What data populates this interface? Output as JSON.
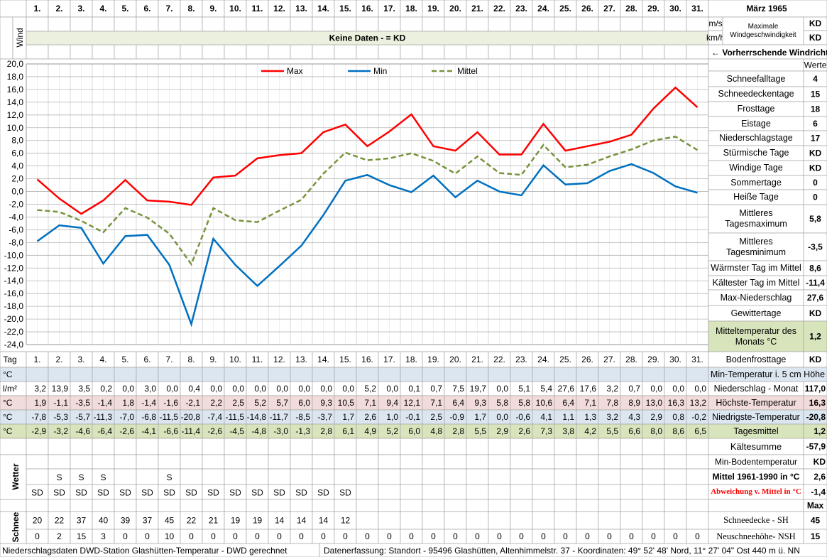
{
  "header": {
    "title": "März 1965"
  },
  "wind": {
    "label": "Wind",
    "units": [
      "m/s",
      "km/h"
    ],
    "banner": "Keine Daten -  = KD",
    "max_label": "Maximale Windgeschwindigkeit",
    "max_values": [
      "KD",
      "KD"
    ],
    "direction": "← Vorherrschende Windrichtung"
  },
  "chart_data": {
    "type": "line",
    "categories": [
      "1.",
      "2.",
      "3.",
      "4.",
      "5.",
      "6.",
      "7.",
      "8.",
      "9.",
      "10.",
      "11.",
      "12.",
      "13.",
      "14.",
      "15.",
      "16.",
      "17.",
      "18.",
      "19.",
      "20.",
      "21.",
      "22.",
      "23.",
      "24.",
      "25.",
      "26.",
      "27.",
      "28.",
      "29.",
      "30.",
      "31."
    ],
    "ylim": [
      -24,
      20
    ],
    "yticks": [
      {
        "value": 20,
        "label": "20,0"
      },
      {
        "value": 18,
        "label": "18,0"
      },
      {
        "value": 16,
        "label": "16,0"
      },
      {
        "value": 14,
        "label": "14,0"
      },
      {
        "value": 12,
        "label": "12,0"
      },
      {
        "value": 10,
        "label": "10,0"
      },
      {
        "value": 8,
        "label": "8,0"
      },
      {
        "value": 6,
        "label": "6,0"
      },
      {
        "value": 4,
        "label": "4,0"
      },
      {
        "value": 2,
        "label": "2,0"
      },
      {
        "value": 0,
        "label": "0,0"
      },
      {
        "value": -2,
        "label": "-2,0"
      },
      {
        "value": -4,
        "label": "-4,0"
      },
      {
        "value": -6,
        "label": "-6,0"
      },
      {
        "value": -8,
        "label": "-8,0"
      },
      {
        "value": -10,
        "label": "-10,0"
      },
      {
        "value": -12,
        "label": "-12,0"
      },
      {
        "value": -14,
        "label": "-14,0"
      },
      {
        "value": -16,
        "label": "-16,0"
      },
      {
        "value": -18,
        "label": "-18,0"
      },
      {
        "value": -20,
        "label": "-20,0"
      },
      {
        "value": -22,
        "label": "-22,0"
      },
      {
        "value": -24,
        "label": "-24,0"
      }
    ],
    "grid": true,
    "legend": "top",
    "series": [
      {
        "name": "Max",
        "color": "#ff0000",
        "line_style": "solid",
        "values": [
          1.9,
          -1.1,
          -3.5,
          -1.4,
          1.8,
          -1.4,
          -1.6,
          -2.1,
          2.2,
          2.5,
          5.2,
          5.7,
          6.0,
          9.3,
          10.5,
          7.1,
          9.4,
          12.1,
          7.1,
          6.4,
          9.3,
          5.8,
          5.8,
          10.6,
          6.4,
          7.1,
          7.8,
          8.9,
          13.0,
          16.3,
          13.2
        ],
        "value_labels": [
          "1,9",
          "-1,1",
          "-3,5",
          "-1,4",
          "1,8",
          "-1,4",
          "-1,6",
          "-2,1",
          "2,2",
          "2,5",
          "5,2",
          "5,7",
          "6,0",
          "9,3",
          "10,5",
          "7,1",
          "9,4",
          "12,1",
          "7,1",
          "6,4",
          "9,3",
          "5,8",
          "5,8",
          "10,6",
          "6,4",
          "7,1",
          "7,8",
          "8,9",
          "13,0",
          "16,3",
          "13,2"
        ]
      },
      {
        "name": "Min",
        "color": "#0070c0",
        "line_style": "solid",
        "values": [
          -7.8,
          -5.3,
          -5.7,
          -11.3,
          -7.0,
          -6.8,
          -11.5,
          -20.8,
          -7.4,
          -11.5,
          -14.8,
          -11.7,
          -8.5,
          -3.7,
          1.7,
          2.6,
          1.0,
          -0.1,
          2.5,
          -0.9,
          1.7,
          0.0,
          -0.6,
          4.1,
          1.1,
          1.3,
          3.2,
          4.3,
          2.9,
          0.8,
          -0.2
        ],
        "value_labels": [
          "-7,8",
          "-5,3",
          "-5,7",
          "-11,3",
          "-7,0",
          "-6,8",
          "-11,5",
          "-20,8",
          "-7,4",
          "-11,5",
          "-14,8",
          "-11,7",
          "-8,5",
          "-3,7",
          "1,7",
          "2,6",
          "1,0",
          "-0,1",
          "2,5",
          "-0,9",
          "1,7",
          "0,0",
          "-0,6",
          "4,1",
          "1,1",
          "1,3",
          "3,2",
          "4,3",
          "2,9",
          "0,8",
          "-0,2"
        ]
      },
      {
        "name": "Mittel",
        "color": "#77933c",
        "line_style": "dashed",
        "values": [
          -2.9,
          -3.2,
          -4.6,
          -6.4,
          -2.6,
          -4.1,
          -6.6,
          -11.4,
          -2.6,
          -4.5,
          -4.8,
          -3.0,
          -1.3,
          2.8,
          6.1,
          4.9,
          5.2,
          6.0,
          4.8,
          2.8,
          5.5,
          2.9,
          2.6,
          7.3,
          3.8,
          4.2,
          5.5,
          6.6,
          8.0,
          8.6,
          6.5
        ],
        "value_labels": [
          "-2,9",
          "-3,2",
          "-4,6",
          "-6,4",
          "-2,6",
          "-4,1",
          "-6,6",
          "-11,4",
          "-2,6",
          "-4,5",
          "-4,8",
          "-3,0",
          "-1,3",
          "2,8",
          "6,1",
          "4,9",
          "5,2",
          "6,0",
          "4,8",
          "2,8",
          "5,5",
          "2,9",
          "2,6",
          "7,3",
          "3,8",
          "4,2",
          "5,5",
          "6,6",
          "8,0",
          "8,6",
          "6,5"
        ]
      }
    ]
  },
  "stats": {
    "header": "Werte",
    "rows": [
      [
        "Schneefalltage",
        "4"
      ],
      [
        "Schneedeckentage",
        "15"
      ],
      [
        "Frosttage",
        "18"
      ],
      [
        "Eistage",
        "6"
      ],
      [
        "Niederschlagstage",
        "17"
      ],
      [
        "Stürmische Tage",
        "KD"
      ],
      [
        "Windige Tage",
        "KD"
      ],
      [
        "Sommertage",
        "0"
      ],
      [
        "Heiße Tage",
        "0"
      ],
      [
        "Mittleres Tagesmaximum",
        "5,8"
      ],
      [
        "Mittleres Tagesminimum",
        "-3,5"
      ],
      [
        "Wärmster Tag im Mittel",
        "8,6"
      ],
      [
        "Kältester Tag im Mittel",
        "-11,4"
      ],
      [
        "Max-Niederschlag",
        "27,6"
      ],
      [
        "Gewittertage",
        "KD"
      ],
      [
        "Mitteltemperatur des Monats °C",
        "1,2"
      ],
      [
        "Bodenfrosttage",
        "KD"
      ]
    ]
  },
  "table": {
    "day_label": "Tag",
    "soil": {
      "unit": "°C",
      "label": "Min-Temperatur i. 5 cm Höhe"
    },
    "precip": {
      "unit": "l/m²",
      "label": "Niederschlag - Monat",
      "total": "117,0",
      "values": [
        "3,2",
        "13,9",
        "3,5",
        "0,2",
        "0,0",
        "3,0",
        "0,0",
        "0,4",
        "0,0",
        "0,0",
        "0,0",
        "0,0",
        "0,0",
        "0,0",
        "0,0",
        "5,2",
        "0,0",
        "0,1",
        "0,7",
        "7,5",
        "19,7",
        "0,0",
        "5,1",
        "5,4",
        "27,6",
        "17,6",
        "3,2",
        "0,7",
        "0,0",
        "0,0",
        "0,0"
      ]
    },
    "max": {
      "unit": "°C",
      "label": "Höchste-Temperatur",
      "total": "16,3"
    },
    "min": {
      "unit": "°C",
      "label": "Niedrigste-Temperatur",
      "total": "-20,8"
    },
    "mean": {
      "unit": "°C",
      "label": "Tagesmittel",
      "total": "1,2"
    },
    "summary": [
      [
        "Kältesumme",
        "-57,9"
      ],
      [
        "Min-Bodentemperatur",
        "KD"
      ],
      [
        "Mittel 1961-1990 in °C",
        "2,6"
      ],
      [
        "Abweichung v. Mittel in °C",
        "-1,4"
      ]
    ],
    "weather": {
      "label": "Wetter",
      "rows": [
        [
          null,
          "S",
          "S",
          "S",
          null,
          null,
          "S",
          null,
          null,
          null,
          null,
          null,
          null,
          null,
          null,
          null,
          null,
          null,
          null,
          null,
          null,
          null,
          null,
          null,
          null,
          null,
          null,
          null,
          null,
          null,
          null
        ],
        [
          "SD",
          "SD",
          "SD",
          "SD",
          "SD",
          "SD",
          "SD",
          "SD",
          "SD",
          "SD",
          "SD",
          "SD",
          "SD",
          "SD",
          "SD",
          null,
          null,
          null,
          null,
          null,
          null,
          null,
          null,
          null,
          null,
          null,
          null,
          null,
          null,
          null,
          null
        ]
      ]
    },
    "snow": {
      "label": "Schnee",
      "max_header": "Max",
      "rows": [
        {
          "label": "Schneedecke -  SH",
          "max": "45",
          "values": [
            "20",
            "22",
            "37",
            "40",
            "39",
            "37",
            "45",
            "22",
            "21",
            "19",
            "19",
            "14",
            "14",
            "14",
            "12",
            null,
            null,
            null,
            null,
            null,
            null,
            null,
            null,
            null,
            null,
            null,
            null,
            null,
            null,
            null,
            null
          ]
        },
        {
          "label": "Neuschneehöhe- NSH",
          "max": "15",
          "values": [
            "0",
            "2",
            "15",
            "3",
            "0",
            "0",
            "10",
            "0",
            "0",
            "0",
            "0",
            "0",
            "0",
            "0",
            "0",
            "0",
            "0",
            "0",
            "0",
            "0",
            "0",
            "0",
            "0",
            "0",
            "0",
            "0",
            "0",
            "0",
            "0",
            "0",
            "0"
          ]
        }
      ]
    }
  },
  "footer": {
    "left": "Niederschlagsdaten DWD-Station Glashütten-Temperatur -  DWD gerechnet",
    "right": "Datenerfassung: Standort - 95496 Glashütten, Altenhimmelstr. 37 - Koordinaten: 49° 52' 48' Nord,  11° 27' 04\" Ost  440 m ü. NN"
  }
}
